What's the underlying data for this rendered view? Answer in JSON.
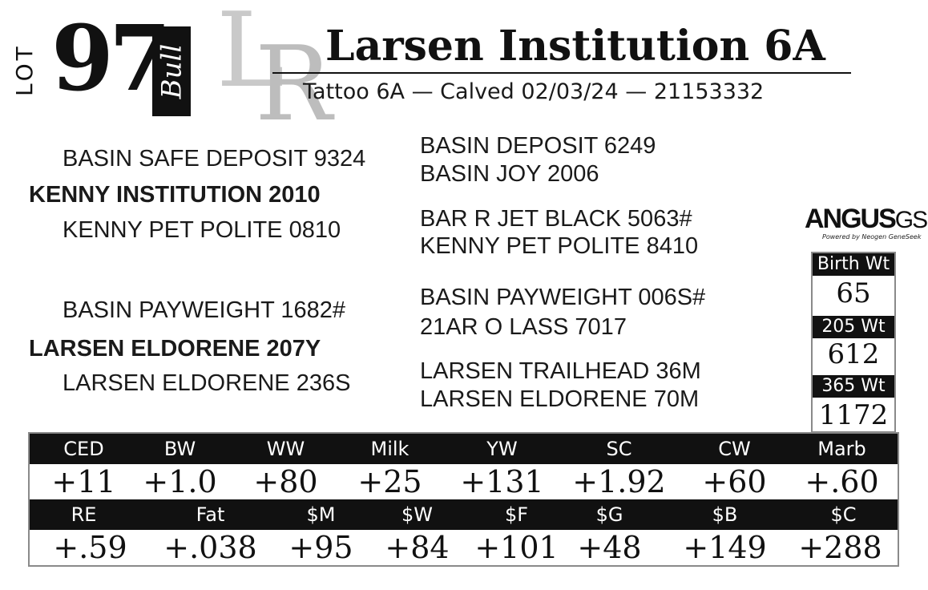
{
  "lot": {
    "label": "LOT",
    "number": "97",
    "type": "Bull"
  },
  "logo": {
    "letters": [
      "L",
      "R"
    ]
  },
  "animal": {
    "name": "Larsen Institution 6A",
    "subtitle": "Tattoo 6A  —  Calved 02/03/24  —  21153332"
  },
  "pedigree": {
    "sire": "KENNY INSTITUTION 2010",
    "sire_sire": "BASIN SAFE DEPOSIT 9324",
    "sire_dam": "KENNY PET POLITE 0810",
    "sire_sire_sire": "BASIN DEPOSIT 6249",
    "sire_sire_dam": "BASIN JOY 2006",
    "sire_dam_sire": "BAR R JET BLACK 5063#",
    "sire_dam_dam": "KENNY PET POLITE 8410",
    "dam": "LARSEN ELDORENE 207Y",
    "dam_sire": "BASIN PAYWEIGHT 1682#",
    "dam_dam": "LARSEN ELDORENE 236S",
    "dam_sire_sire": "BASIN PAYWEIGHT 006S#",
    "dam_sire_dam": "21AR O LASS 7017",
    "dam_dam_sire": "LARSEN TRAILHEAD 36M",
    "dam_dam_dam": "LARSEN ELDORENE 70M"
  },
  "angus": {
    "brand": "ANGUS",
    "suffix": "GS",
    "tagline": "Powered by Neogen GeneSeek"
  },
  "weights": [
    {
      "label": "Birth Wt",
      "value": "65"
    },
    {
      "label": "205 Wt",
      "value": "612"
    },
    {
      "label": "365 Wt",
      "value": "1172"
    }
  ],
  "epd_row1": [
    {
      "label": "CED",
      "value": "+11"
    },
    {
      "label": "BW",
      "value": "+1.0"
    },
    {
      "label": "WW",
      "value": "+80"
    },
    {
      "label": "Milk",
      "value": "+25"
    },
    {
      "label": "YW",
      "value": "+131"
    },
    {
      "label": "SC",
      "value": "+1.92"
    },
    {
      "label": "CW",
      "value": "+60"
    },
    {
      "label": "Marb",
      "value": "+.60"
    }
  ],
  "epd_row2": [
    {
      "label": "RE",
      "value": "+.59"
    },
    {
      "label": "Fat",
      "value": "+.038"
    },
    {
      "label": "$M",
      "value": "+95"
    },
    {
      "label": "$W",
      "value": "+84"
    },
    {
      "label": "$F",
      "value": "+101"
    },
    {
      "label": "$G",
      "value": "+48"
    },
    {
      "label": "$B",
      "value": "+149"
    },
    {
      "label": "$C",
      "value": "+288"
    }
  ]
}
